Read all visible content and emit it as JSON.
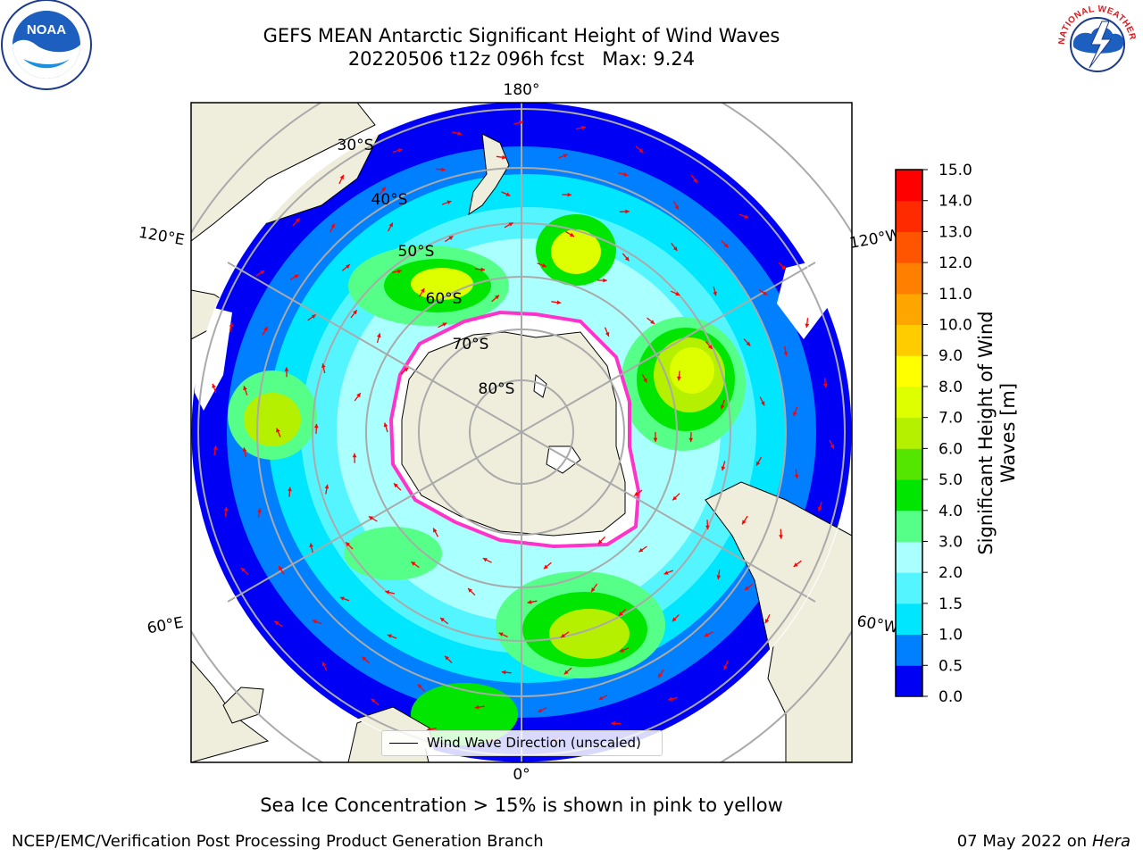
{
  "title": "GEFS MEAN Antarctic Significant Height of Wind Waves",
  "subtitle": "20220506 t12z 096h fcst   Max: 9.24",
  "caption": "Sea Ice Concentration > 15% is shown in pink to yellow",
  "footer_left": "NCEP/EMC/Verification Post Processing Product Generation Branch",
  "footer_date": "07 May 2022 on",
  "footer_machine": "Hera",
  "legend_label": "Wind Wave Direction (unscaled)",
  "colorbar": {
    "label_line1": "Significant Height of Wind",
    "label_line2": "Waves [m]",
    "ticks": [
      "0.0",
      "0.5",
      "1.0",
      "1.5",
      "2.0",
      "3.0",
      "4.0",
      "5.0",
      "6.0",
      "7.0",
      "8.0",
      "9.0",
      "10.0",
      "11.0",
      "12.0",
      "13.0",
      "14.0",
      "15.0"
    ],
    "colors": [
      "#0000f5",
      "#0080ff",
      "#00e6ff",
      "#55f5ff",
      "#aaffff",
      "#55ff88",
      "#00e600",
      "#55e600",
      "#b5f000",
      "#ddff00",
      "#ffff00",
      "#ffcc00",
      "#ffa500",
      "#ff7f00",
      "#ff5500",
      "#ff2a00",
      "#ff0000"
    ]
  },
  "map": {
    "latitude_labels": [
      "30°S",
      "40°S",
      "50°S",
      "60°S",
      "70°S",
      "80°S"
    ],
    "longitude_labels": {
      "top": "180°",
      "bottom": "0°",
      "upper_left": "120°E",
      "upper_right": "120°W",
      "lower_left": "60°E",
      "lower_right": "60°W"
    },
    "colors": {
      "ocean_deep": "#0000f5",
      "land": "#efeedd",
      "ice_edge": "#ff33cc",
      "arrow": "#ff0000",
      "grid": "#aaaaaa"
    }
  },
  "logos": {
    "noaa_text": "NOAA",
    "nws_text": "NATIONAL WEATHER SERVICE"
  }
}
